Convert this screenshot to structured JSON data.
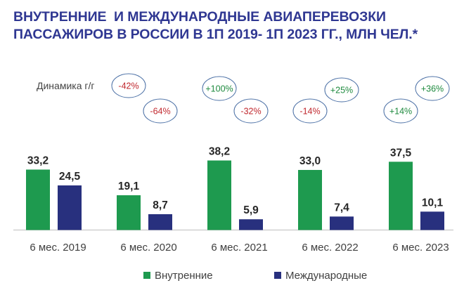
{
  "title_lines": [
    "ВНУТРЕННИЕ  И МЕЖДУНАРОДНЫЕ АВИАПЕРЕВОЗКИ",
    "ПАССАЖИРОВ В РОССИИ В 1П 2019- 1П 2023 ГГ., МЛН ЧЕЛ.*"
  ],
  "dynamics_label": "Динамика г/г",
  "colors": {
    "domestic": "#1e9a4f",
    "international": "#28307e",
    "positive": "#1e8a3e",
    "negative": "#c0272d",
    "bubble_border": "#4a6fa5",
    "title": "#2f3792"
  },
  "chart_data": {
    "type": "bar",
    "title": "ВНУТРЕННИЕ  И МЕЖДУНАРОДНЫЕ АВИАПЕРЕВОЗКИ ПАССАЖИРОВ В РОССИИ В 1П 2019- 1П 2023 ГГ., МЛН ЧЕЛ.*",
    "categories": [
      "6 мес. 2019",
      "6 мес. 2020",
      "6 мес. 2021",
      "6 мес. 2022",
      "6 мес. 2023"
    ],
    "series": [
      {
        "name": "Внутренние",
        "values": [
          33.2,
          19.1,
          38.2,
          33.0,
          37.5
        ],
        "labels": [
          "33,2",
          "19,1",
          "38,2",
          "33,0",
          "37,5"
        ],
        "yoy": [
          null,
          "-42%",
          "+100%",
          "-14%",
          "+14%"
        ]
      },
      {
        "name": "Международные",
        "values": [
          24.5,
          8.7,
          5.9,
          7.4,
          10.1
        ],
        "labels": [
          "24,5",
          "8,7",
          "5,9",
          "7,4",
          "10,1"
        ],
        "yoy": [
          null,
          "-64%",
          "-32%",
          "+25%",
          "+36%"
        ]
      }
    ],
    "ylim": [
      0,
      38.2
    ],
    "xlabel": "",
    "ylabel": "",
    "legend_position": "bottom",
    "grid": false
  }
}
